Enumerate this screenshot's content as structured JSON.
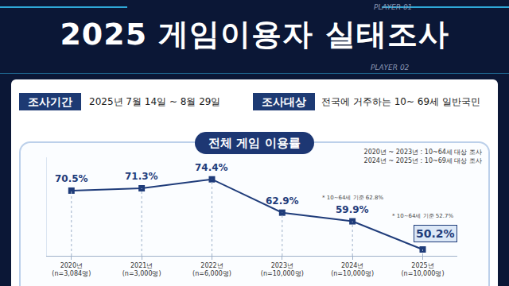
{
  "header": {
    "title": "2025 게임이용자 실태조사",
    "player_labels": [
      "PLAYER 01",
      "PLAYER 02"
    ],
    "survey": [
      {
        "label": "조사기간",
        "text": "2025년 7월 14일 ~ 8월 29일"
      },
      {
        "label": "조사대상",
        "text": "전국에 거주하는 10~ 69세 일반국민"
      }
    ]
  },
  "chart_data": {
    "type": "line",
    "title": "전체 게임 이용률",
    "notes": [
      "2020년 ~ 2023년 : 10~64세 대상 조사",
      "2024년 ~ 2025년 : 10~69세 대상 조사"
    ],
    "categories": [
      "2020년\n(n=3,084명)",
      "2021년\n(n=3,000명)",
      "2022년\n(n=6,000명)",
      "2023년\n(n=10,000명)",
      "2024년\n(n=10,000명)",
      "2025년\n(n=10,000명)"
    ],
    "values": [
      70.5,
      71.3,
      74.4,
      62.9,
      59.9,
      50.2
    ],
    "value_labels": [
      "70.5%",
      "71.3%",
      "74.4%",
      "62.9%",
      "59.9%",
      "50.2%"
    ],
    "annotations": [
      {
        "category": "2024년\n(n=10,000명)",
        "text": "* 10~64세 기준 62.8%"
      },
      {
        "category": "2025년\n(n=10,000명)",
        "text": "* 10~64세 기준 52.7%"
      }
    ],
    "data_labels": true,
    "color": "#1f3c7a",
    "marker": "square",
    "ylim": [
      48,
      82
    ],
    "yticks": [],
    "tick_labels": "x",
    "grid": false
  }
}
